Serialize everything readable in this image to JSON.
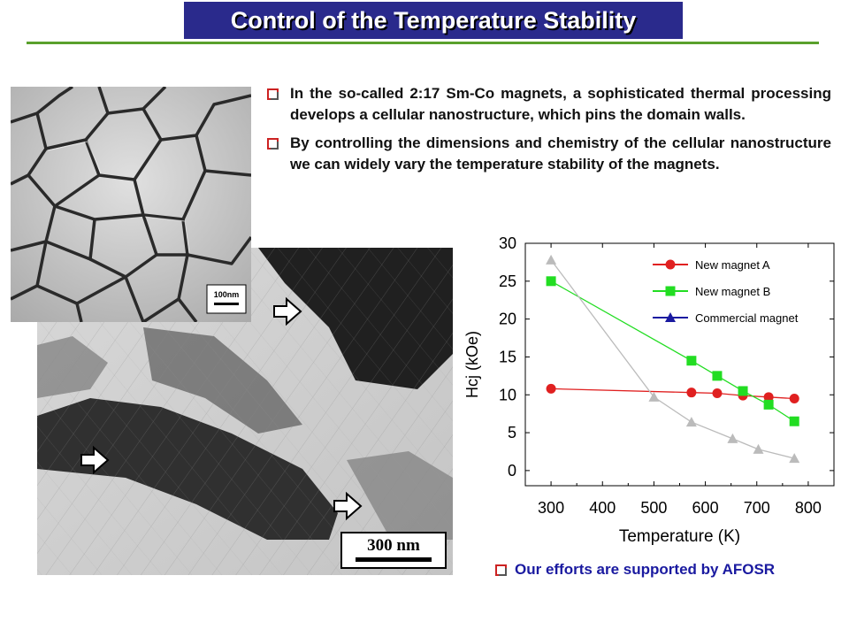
{
  "title": "Control of the Temperature Stability",
  "bullets": [
    "In the so-called 2:17 Sm-Co magnets, a sophisticated thermal processing develops a cellular nanostructure, which pins the domain walls.",
    "By controlling the dimensions and chemistry of the cellular nanostructure we can widely vary the temperature stability of the magnets."
  ],
  "images": {
    "top_scale_label": "100nm",
    "bottom_scale_label": "300 nm"
  },
  "support_text": "Our efforts are supported by AFOSR",
  "colors": {
    "title_bg": "#2a2a8c",
    "rule": "#5aa02c",
    "bullet_marker": "#cc2222",
    "support_text": "#1a1aa0",
    "series_a": "#e02020",
    "series_b": "#22dd22",
    "series_c": "#1a1aa0",
    "gray_curve": "#bbbbbb"
  },
  "chart_data": {
    "type": "line",
    "xlabel": "Temperature (K)",
    "ylabel": "Hcj (kOe)",
    "xlim": [
      250,
      850
    ],
    "ylim": [
      -2,
      30
    ],
    "xticks": [
      300,
      400,
      500,
      600,
      700,
      800
    ],
    "yticks": [
      0,
      5,
      10,
      15,
      20,
      25,
      30
    ],
    "legend_position": "top-right",
    "series": [
      {
        "name": "New magnet A",
        "color": "#e02020",
        "marker": "circle",
        "x": [
          300,
          573,
          623,
          673,
          723,
          773
        ],
        "y": [
          10.8,
          10.3,
          10.2,
          9.9,
          9.7,
          9.5
        ]
      },
      {
        "name": "New magnet B",
        "color": "#22dd22",
        "marker": "square",
        "x": [
          300,
          573,
          623,
          673,
          723,
          773
        ],
        "y": [
          25,
          14.5,
          12.5,
          10.5,
          8.7,
          6.5
        ]
      },
      {
        "name": "Commercial magnet",
        "color": "#1a1aa0",
        "marker": "triangle",
        "x": [],
        "y": []
      },
      {
        "name": "",
        "color": "#bbbbbb",
        "marker": "triangle",
        "x": [
          300,
          500,
          573,
          653,
          703,
          773
        ],
        "y": [
          27.8,
          9.7,
          6.4,
          4.2,
          2.8,
          1.6
        ]
      }
    ]
  }
}
